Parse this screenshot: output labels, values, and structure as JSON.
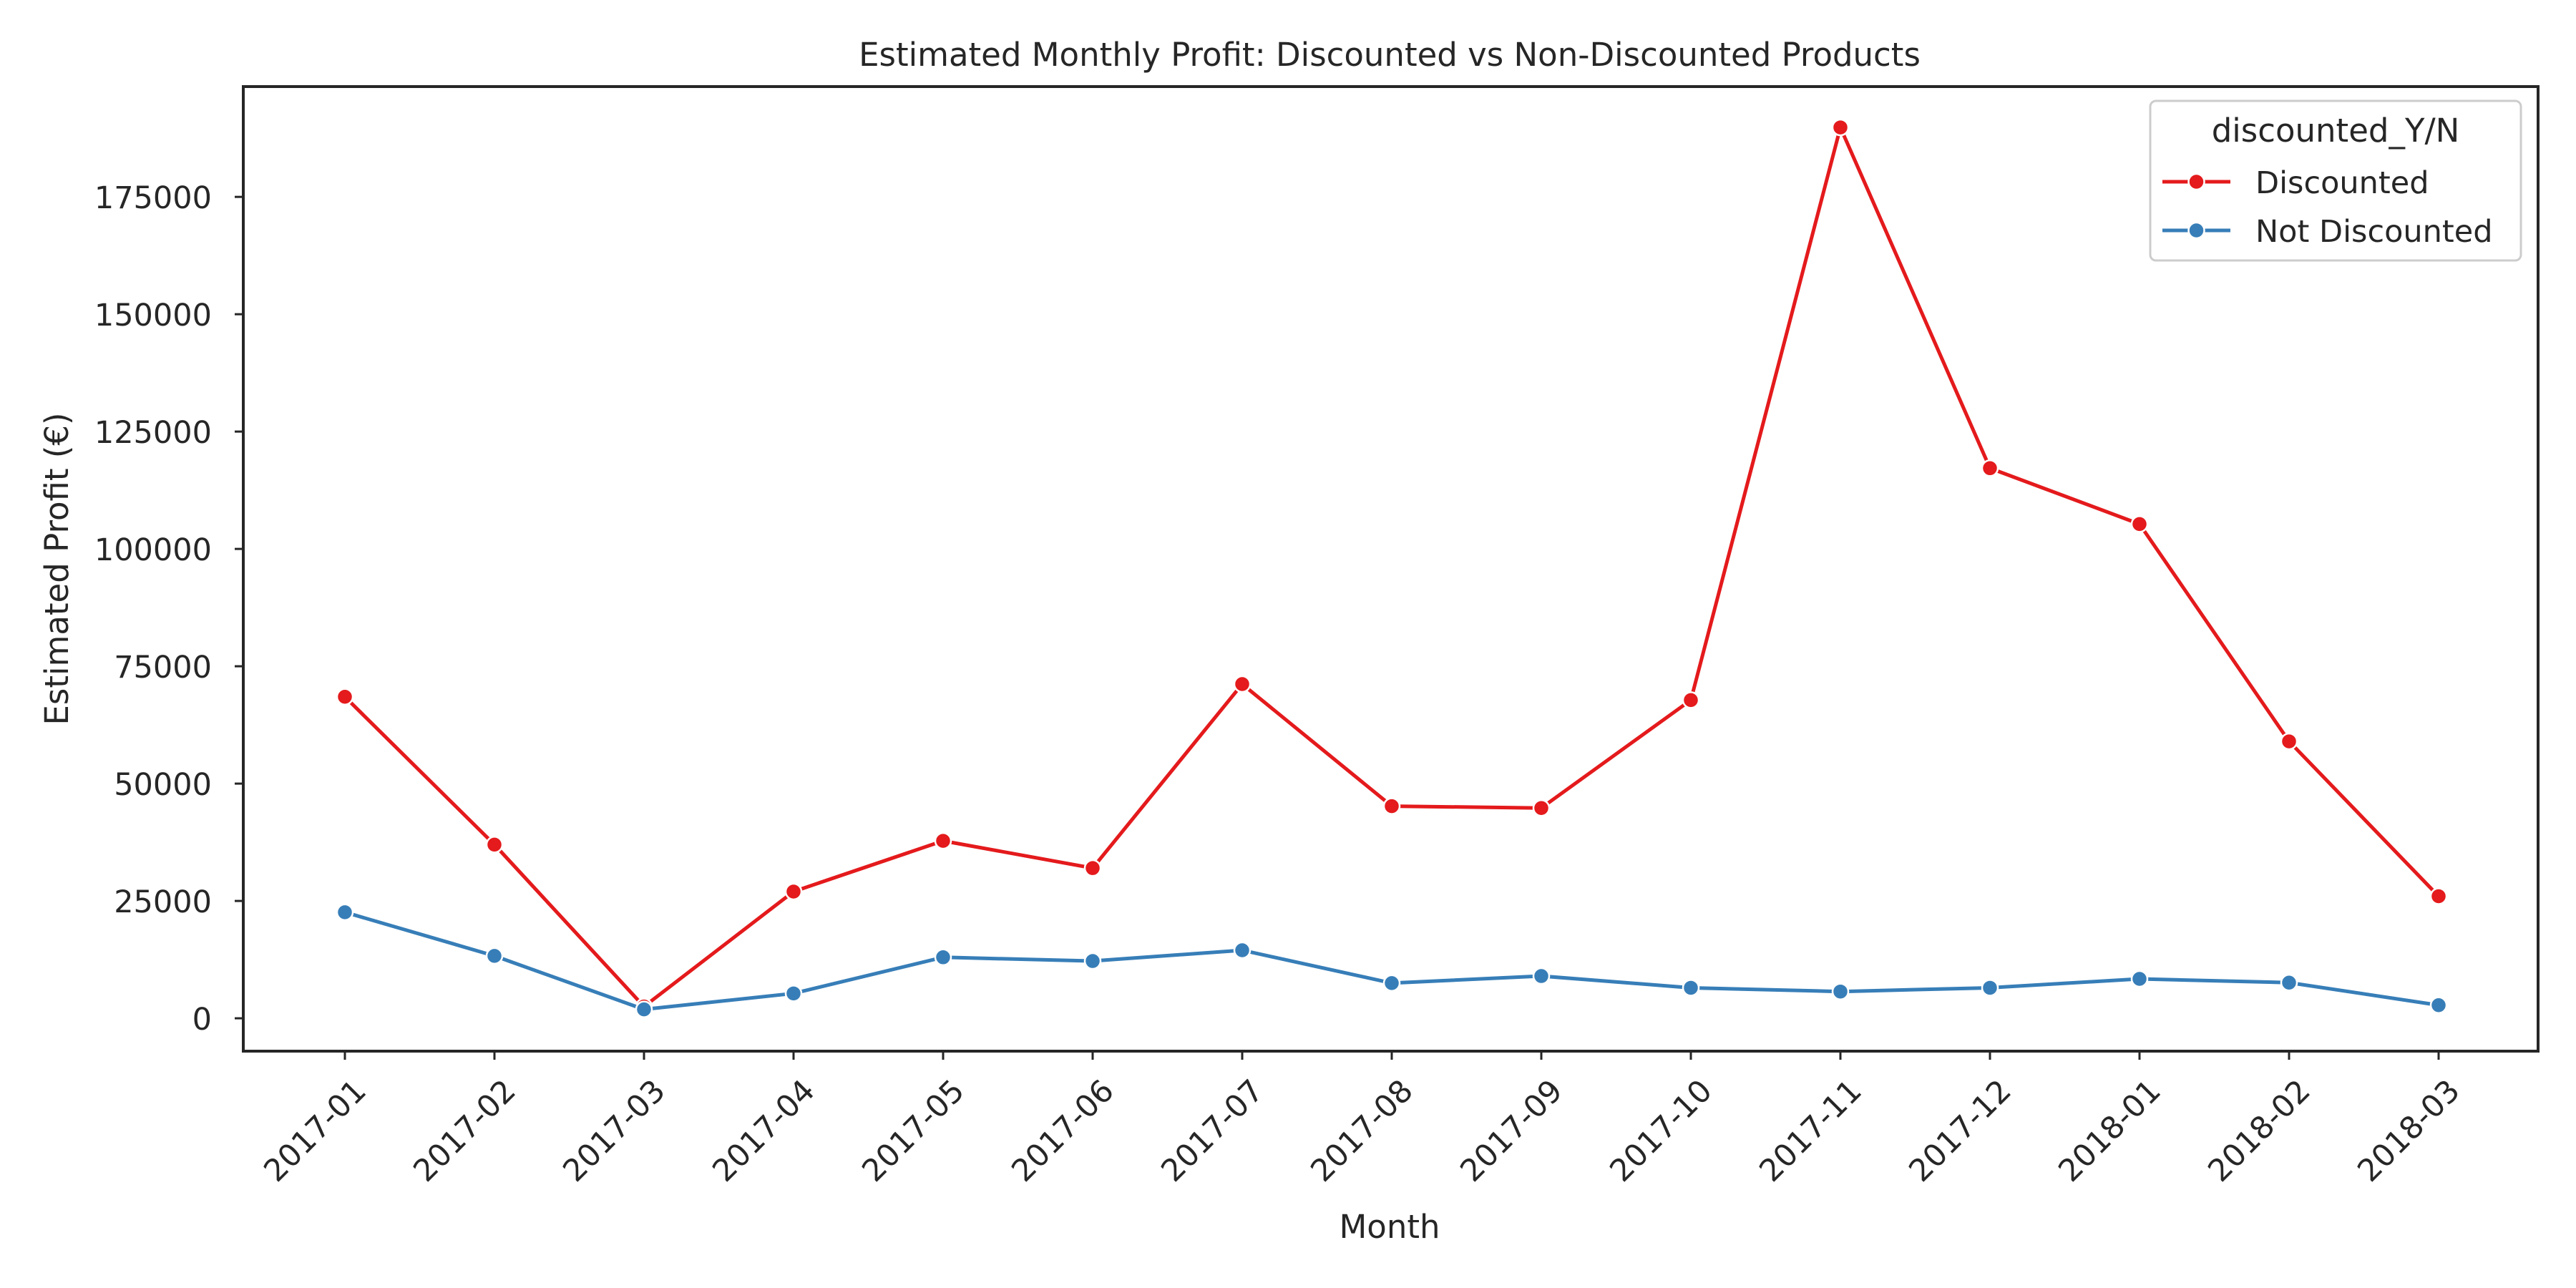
{
  "chart_data": {
    "type": "line",
    "title": "Estimated Monthly Profit: Discounted vs Non-Discounted Products",
    "xlabel": "Month",
    "ylabel": "Estimated Profit (€)",
    "categories": [
      "2017-01",
      "2017-02",
      "2017-03",
      "2017-04",
      "2017-05",
      "2017-06",
      "2017-07",
      "2017-08",
      "2017-09",
      "2017-10",
      "2017-11",
      "2017-12",
      "2018-01",
      "2018-02",
      "2018-03"
    ],
    "y_ticks": [
      0,
      25000,
      50000,
      75000,
      100000,
      125000,
      150000,
      175000
    ],
    "ylim": [
      -7000,
      198500
    ],
    "grid": false,
    "legend": {
      "title": "discounted_Y/N",
      "position": "top-right"
    },
    "series": [
      {
        "name": "Discounted",
        "color": "#e41a1c",
        "values": [
          68500,
          37000,
          2500,
          27000,
          37800,
          32000,
          71200,
          45200,
          44800,
          67800,
          189800,
          117200,
          105300,
          59000,
          26000
        ]
      },
      {
        "name": "Not Discounted",
        "color": "#377eb8",
        "values": [
          22600,
          13300,
          1900,
          5300,
          13000,
          12200,
          14500,
          7500,
          9000,
          6500,
          5700,
          6500,
          8400,
          7600,
          2800
        ]
      }
    ]
  }
}
